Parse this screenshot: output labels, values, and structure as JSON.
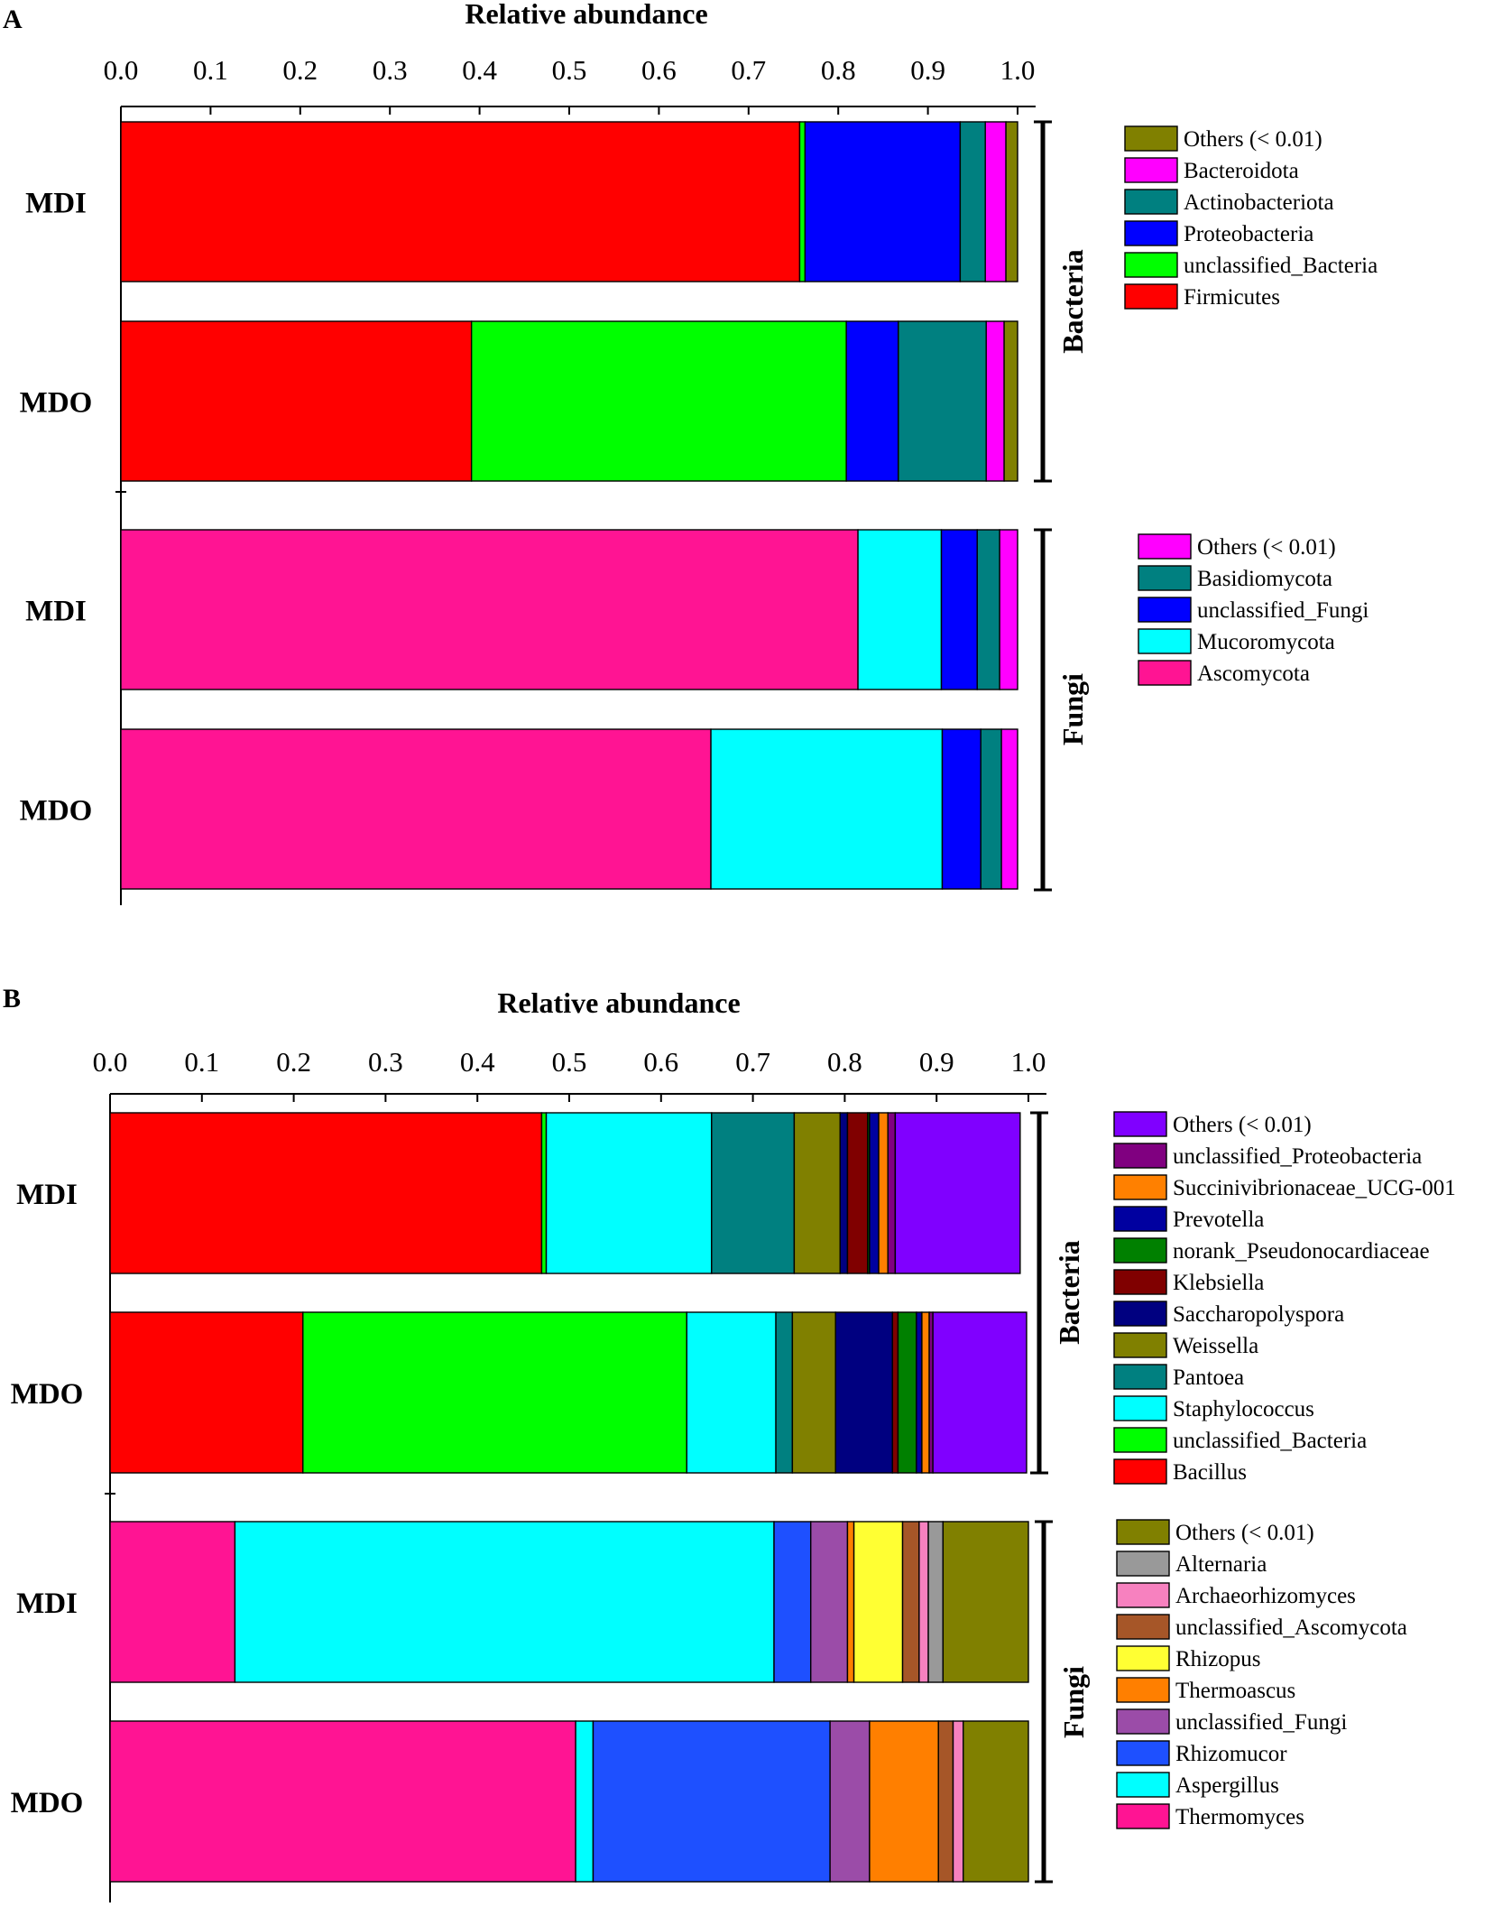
{
  "chart_data": [
    {
      "type": "bar",
      "orientation": "horizontal",
      "stacked": true,
      "panel_label": "A",
      "xlabel": "Relative abundance",
      "xlim": [
        0,
        1
      ],
      "x_ticks": [
        "0.0",
        "0.1",
        "0.2",
        "0.3",
        "0.4",
        "0.5",
        "0.6",
        "0.7",
        "0.8",
        "0.9",
        "1.0"
      ],
      "groups": [
        {
          "name": "Bacteria",
          "categories": [
            "MDI",
            "MDO"
          ],
          "series": [
            {
              "name": "Firmicutes",
              "color": "#ff0000",
              "values": [
                0.757,
                0.391
              ]
            },
            {
              "name": "unclassified_Bacteria",
              "color": "#00ff00",
              "values": [
                0.006,
                0.418
              ]
            },
            {
              "name": "Proteobacteria",
              "color": "#0000ff",
              "values": [
                0.173,
                0.058
              ]
            },
            {
              "name": "Actinobacteriota",
              "color": "#008080",
              "values": [
                0.028,
                0.098
              ]
            },
            {
              "name": "Bacteroidota",
              "color": "#ff00ff",
              "values": [
                0.023,
                0.02
              ]
            },
            {
              "name": "Others (< 0.01)",
              "color": "#808000",
              "values": [
                0.013,
                0.015
              ]
            }
          ]
        },
        {
          "name": "Fungi",
          "categories": [
            "MDI",
            "MDO"
          ],
          "series": [
            {
              "name": "Ascomycota",
              "color": "#ff1493",
              "values": [
                0.822,
                0.658
              ]
            },
            {
              "name": "Mucoromycota",
              "color": "#00ffff",
              "values": [
                0.093,
                0.258
              ]
            },
            {
              "name": "unclassified_Fungi",
              "color": "#0000ff",
              "values": [
                0.04,
                0.043
              ]
            },
            {
              "name": "Basidiomycota",
              "color": "#008080",
              "values": [
                0.025,
                0.023
              ]
            },
            {
              "name": "Others (< 0.01)",
              "color": "#ff00ff",
              "values": [
                0.02,
                0.018
              ]
            }
          ]
        }
      ]
    },
    {
      "type": "bar",
      "orientation": "horizontal",
      "stacked": true,
      "panel_label": "B",
      "xlabel": "Relative abundance",
      "xlim": [
        0,
        1
      ],
      "x_ticks": [
        "0.0",
        "0.1",
        "0.2",
        "0.3",
        "0.4",
        "0.5",
        "0.6",
        "0.7",
        "0.8",
        "0.9",
        "1.0"
      ],
      "groups": [
        {
          "name": "Bacteria",
          "categories": [
            "MDI",
            "MDO"
          ],
          "series": [
            {
              "name": "Bacillus",
              "color": "#ff0000",
              "values": [
                0.47,
                0.21
              ]
            },
            {
              "name": "unclassified_Bacteria",
              "color": "#00ff00",
              "values": [
                0.005,
                0.418
              ]
            },
            {
              "name": "Staphylococcus",
              "color": "#00ffff",
              "values": [
                0.18,
                0.097
              ]
            },
            {
              "name": "Pantoea",
              "color": "#008080",
              "values": [
                0.09,
                0.018
              ]
            },
            {
              "name": "Weissella",
              "color": "#808000",
              "values": [
                0.05,
                0.047
              ]
            },
            {
              "name": "Saccharopolyspora",
              "color": "#000080",
              "values": [
                0.008,
                0.062
              ]
            },
            {
              "name": "Klebsiella",
              "color": "#800000",
              "values": [
                0.022,
                0.006
              ]
            },
            {
              "name": "norank_Pseudonocardiaceae",
              "color": "#008000",
              "values": [
                0.002,
                0.02
              ]
            },
            {
              "name": "Prevotella",
              "color": "#0000a0",
              "values": [
                0.01,
                0.006
              ]
            },
            {
              "name": "Succinivibrionaceae_UCG-001",
              "color": "#ff8000",
              "values": [
                0.01,
                0.008
              ]
            },
            {
              "name": "unclassified_Proteobacteria",
              "color": "#800080",
              "values": [
                0.008,
                0.004
              ]
            },
            {
              "name": "Others (< 0.01)",
              "color": "#8000ff",
              "values": [
                0.136,
                0.102
              ]
            }
          ]
        },
        {
          "name": "Fungi",
          "categories": [
            "MDI",
            "MDO"
          ],
          "series": [
            {
              "name": "Thermomyces",
              "color": "#ff1493",
              "values": [
                0.136,
                0.507
              ]
            },
            {
              "name": "Aspergillus",
              "color": "#00ffff",
              "values": [
                0.587,
                0.019
              ]
            },
            {
              "name": "Rhizomucor",
              "color": "#1e50ff",
              "values": [
                0.04,
                0.258
              ]
            },
            {
              "name": "unclassified_Fungi",
              "color": "#9b4ca8",
              "values": [
                0.04,
                0.043
              ]
            },
            {
              "name": "Thermoascus",
              "color": "#ff7f00",
              "values": [
                0.007,
                0.075
              ]
            },
            {
              "name": "Rhizopus",
              "color": "#ffff33",
              "values": [
                0.053,
                0.0
              ]
            },
            {
              "name": "unclassified_Ascomycota",
              "color": "#a65628",
              "values": [
                0.018,
                0.016
              ]
            },
            {
              "name": "Archaeorhizomyces",
              "color": "#f781bf",
              "values": [
                0.01,
                0.011
              ]
            },
            {
              "name": "Alternaria",
              "color": "#999999",
              "values": [
                0.016,
                0.0
              ]
            },
            {
              "name": "Others (< 0.01)",
              "color": "#808000",
              "values": [
                0.093,
                0.071
              ]
            }
          ]
        }
      ]
    }
  ]
}
